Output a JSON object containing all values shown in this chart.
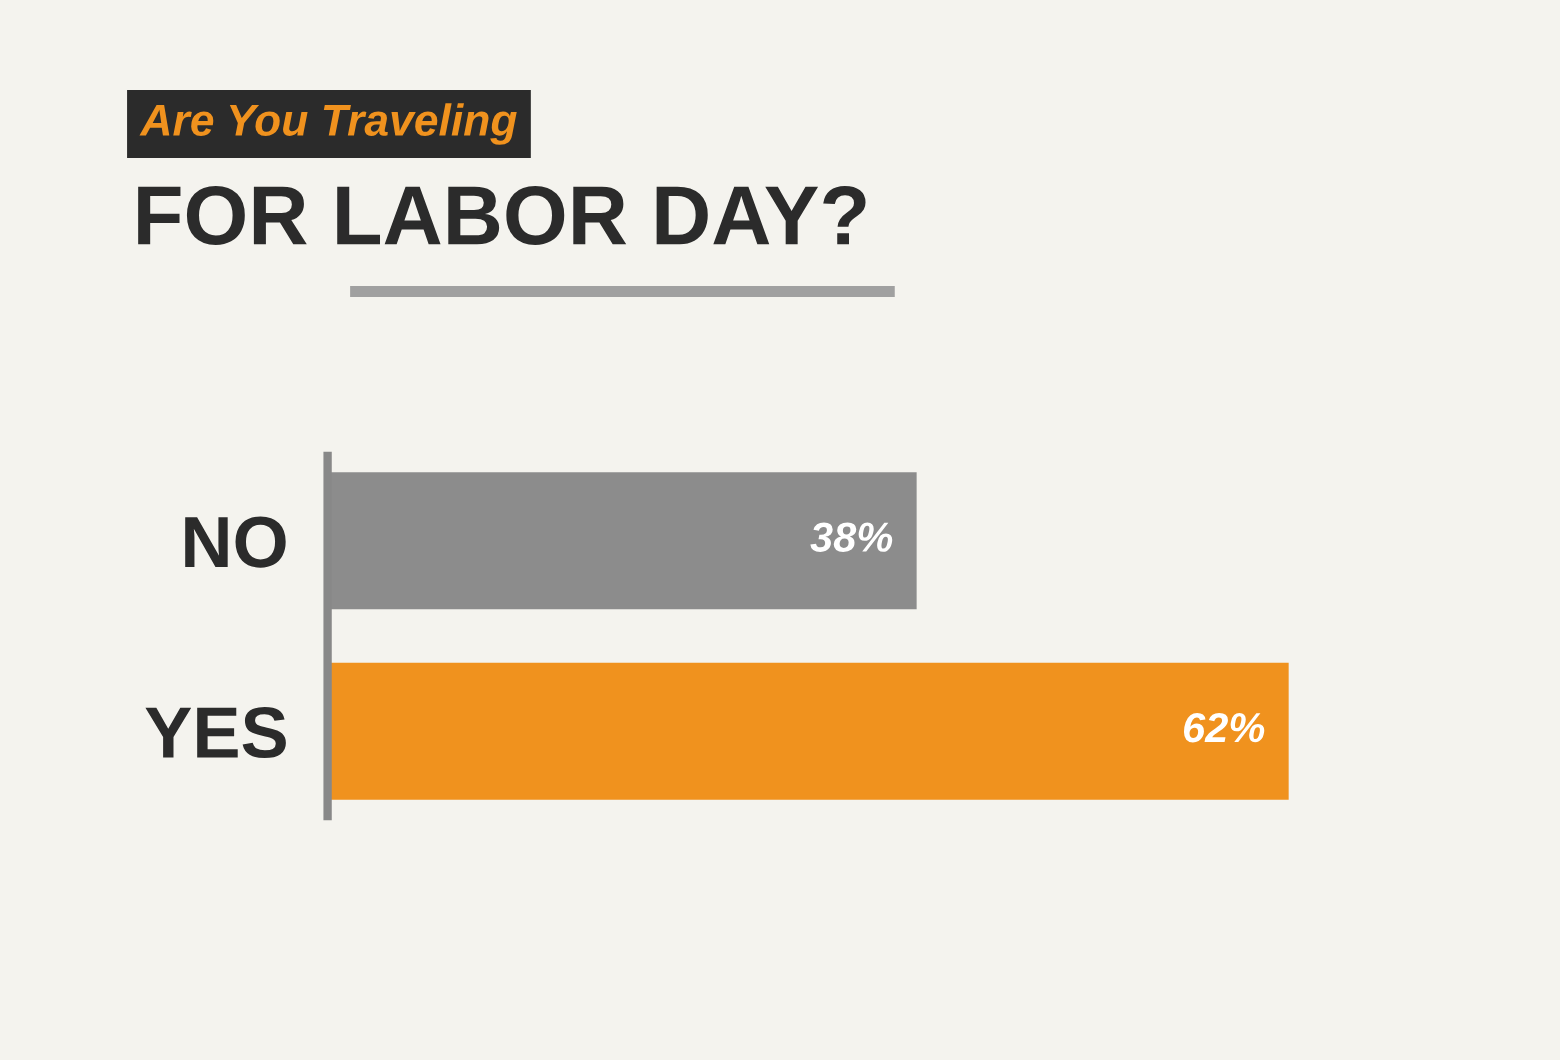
{
  "chart_data": {
    "type": "bar",
    "orientation": "horizontal",
    "subtitle": "Are You Traveling",
    "title": "FOR LABOR DAY?",
    "categories": [
      "NO",
      "YES"
    ],
    "values": [
      38,
      62
    ],
    "colors": [
      "#8c8c8c",
      "#f0921e"
    ],
    "value_labels": [
      "38%",
      "62%"
    ],
    "grid": false,
    "legend": false,
    "tick_labels": "y"
  }
}
